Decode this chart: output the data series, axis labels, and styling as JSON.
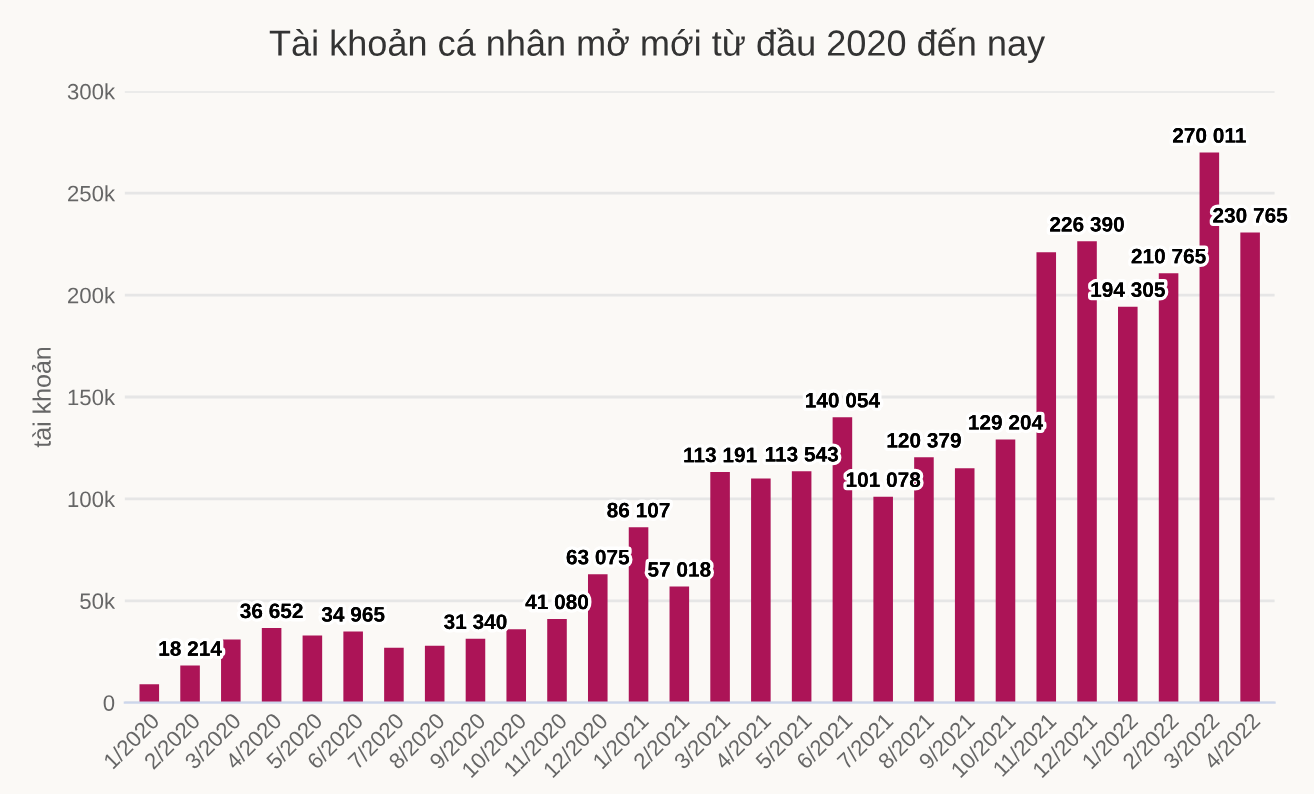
{
  "chart_data": {
    "type": "bar",
    "title": "Tài khoản cá nhân mở mới từ đầu 2020 đến nay",
    "ylabel": "tài khoản",
    "categories": [
      "1/2020",
      "2/2020",
      "3/2020",
      "4/2020",
      "5/2020",
      "6/2020",
      "7/2020",
      "8/2020",
      "9/2020",
      "10/2020",
      "11/2020",
      "12/2020",
      "1/2021",
      "2/2021",
      "3/2021",
      "4/2021",
      "5/2021",
      "6/2021",
      "7/2021",
      "8/2021",
      "9/2021",
      "10/2021",
      "11/2021",
      "12/2021",
      "1/2022",
      "2/2022",
      "3/2022",
      "4/2022"
    ],
    "values": [
      9000,
      18214,
      31000,
      36652,
      33000,
      34965,
      27000,
      28000,
      31340,
      36000,
      41080,
      63075,
      86107,
      57018,
      113191,
      110000,
      113543,
      140054,
      101078,
      120379,
      115000,
      129204,
      221000,
      226390,
      194305,
      210765,
      270011,
      230765
    ],
    "value_labels": [
      null,
      "18 214",
      null,
      "36 652",
      null,
      "34 965",
      null,
      null,
      "31 340",
      null,
      "41 080",
      "63 075",
      "86 107",
      "57 018",
      "113 191",
      null,
      "113 543",
      "140 054",
      "101 078",
      "120 379",
      null,
      "129 204",
      null,
      "226 390",
      "194 305",
      "210 765",
      "270 011",
      "230 765"
    ],
    "color": "#ac1457",
    "ylim": [
      0,
      300000
    ],
    "yticks": [
      {
        "value": 0,
        "label": "0"
      },
      {
        "value": 50000,
        "label": "50k"
      },
      {
        "value": 100000,
        "label": "100k"
      },
      {
        "value": 150000,
        "label": "150k"
      },
      {
        "value": 200000,
        "label": "200k"
      },
      {
        "value": 250000,
        "label": "250k"
      },
      {
        "value": 300000,
        "label": "300k"
      }
    ],
    "grid": "y",
    "legend": false
  }
}
